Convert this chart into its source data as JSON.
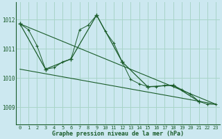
{
  "title": "Graphe pression niveau de la mer (hPa)",
  "bg_color": "#cce8f0",
  "grid_color": "#a8d4c8",
  "line_color": "#1a5c2a",
  "xlim": [
    -0.5,
    23.5
  ],
  "ylim": [
    1008.4,
    1012.6
  ],
  "yticks": [
    1009,
    1010,
    1011,
    1012
  ],
  "xticks": [
    0,
    1,
    2,
    3,
    4,
    5,
    6,
    7,
    8,
    9,
    10,
    11,
    12,
    13,
    14,
    15,
    16,
    17,
    18,
    19,
    20,
    21,
    22,
    23
  ],
  "series_hourly": {
    "x": [
      0,
      1,
      2,
      3,
      4,
      5,
      6,
      7,
      8,
      9,
      10,
      11,
      12,
      13,
      14,
      15,
      16,
      17,
      18,
      19,
      20,
      21,
      22,
      23
    ],
    "y": [
      1011.85,
      1011.65,
      1011.1,
      1010.3,
      1010.35,
      1010.55,
      1010.65,
      1011.65,
      1011.8,
      1012.15,
      1011.6,
      1011.2,
      1010.55,
      1009.95,
      1009.8,
      1009.7,
      1009.7,
      1009.75,
      1009.75,
      1009.6,
      1009.45,
      1009.2,
      1009.1,
      1009.1
    ]
  },
  "series_3h": {
    "x": [
      0,
      3,
      6,
      9,
      12,
      15,
      18,
      21
    ],
    "y": [
      1011.85,
      1010.3,
      1010.65,
      1012.15,
      1010.55,
      1009.7,
      1009.75,
      1009.2
    ]
  },
  "line_max": {
    "x": [
      0,
      23
    ],
    "y": [
      1011.85,
      1009.1
    ]
  },
  "line_min": {
    "x": [
      0,
      23
    ],
    "y": [
      1010.3,
      1009.1
    ]
  }
}
